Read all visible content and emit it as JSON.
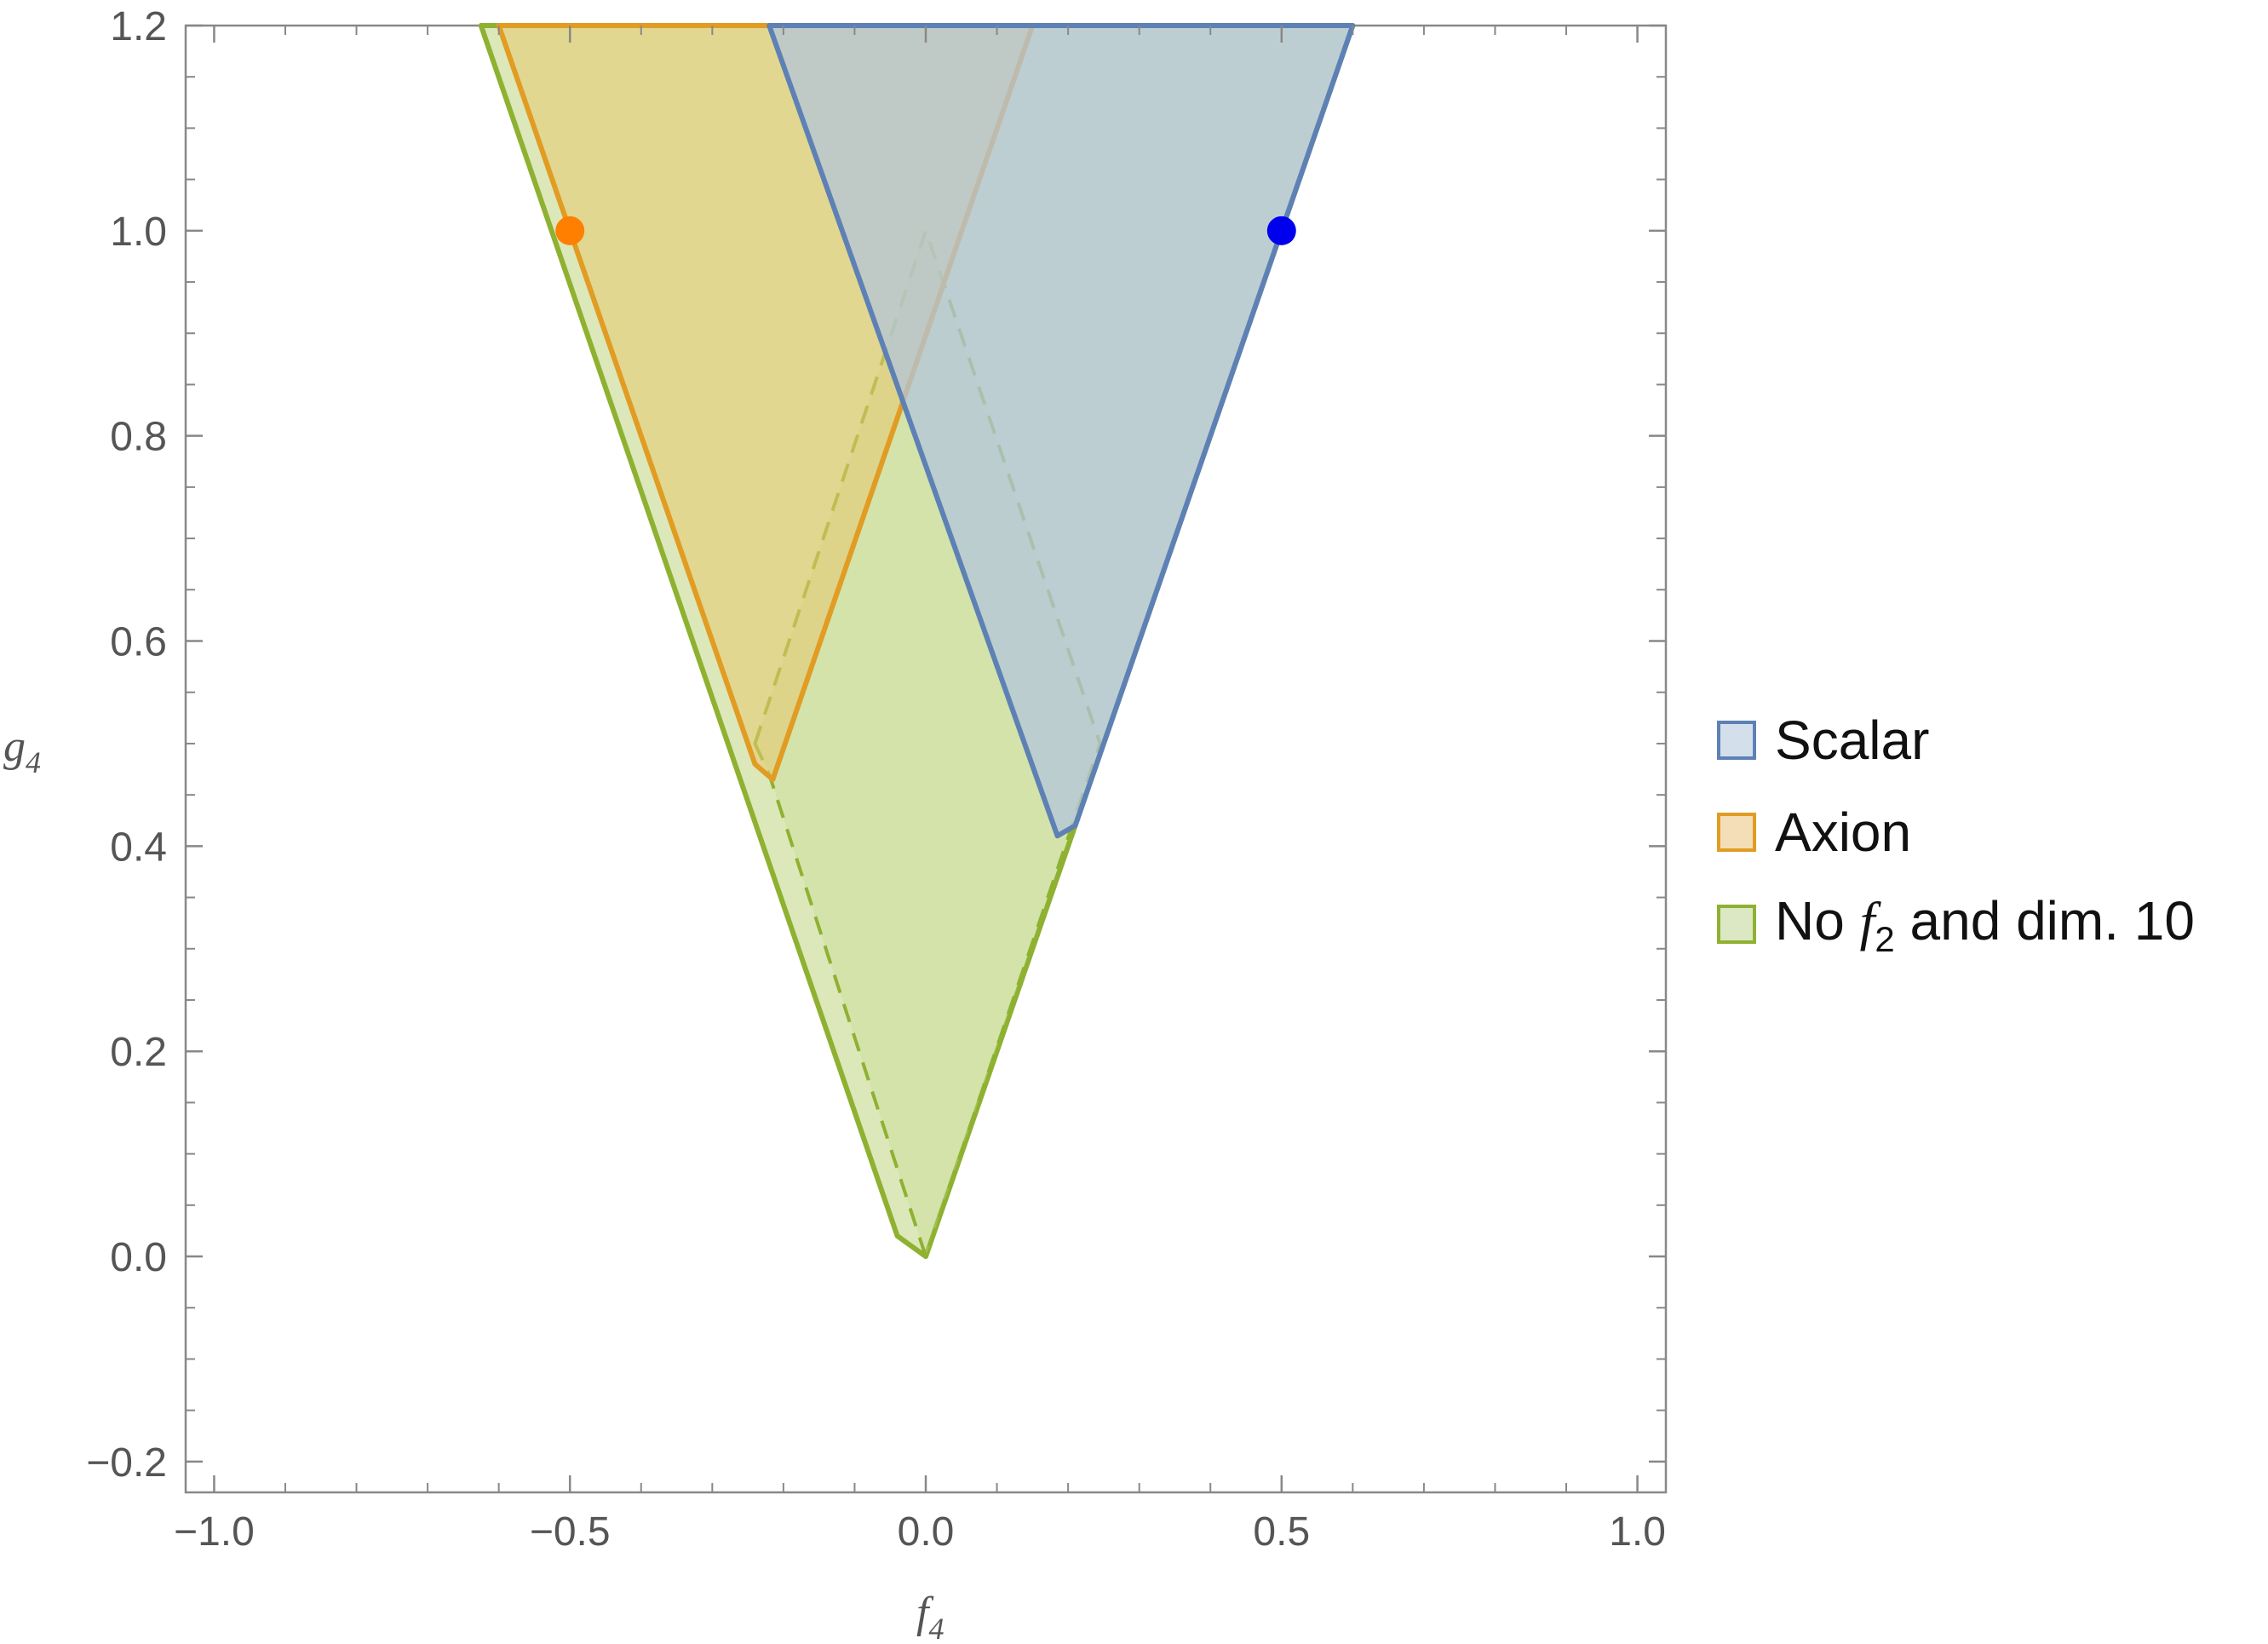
{
  "chart_data": {
    "type": "area",
    "xlabel": "f",
    "xlabel_sub": "4",
    "ylabel": "g",
    "ylabel_sub": "4",
    "xlim": [
      -1.04,
      1.04
    ],
    "ylim": [
      -0.23,
      1.2
    ],
    "x_ticks": [
      {
        "value": -1.0,
        "label": "−1.0"
      },
      {
        "value": -0.5,
        "label": "−0.5"
      },
      {
        "value": 0.0,
        "label": "0.0"
      },
      {
        "value": 0.5,
        "label": "0.5"
      },
      {
        "value": 1.0,
        "label": "1.0"
      }
    ],
    "y_ticks": [
      {
        "value": -0.2,
        "label": "−0.2"
      },
      {
        "value": 0.0,
        "label": "0.0"
      },
      {
        "value": 0.2,
        "label": "0.2"
      },
      {
        "value": 0.4,
        "label": "0.4"
      },
      {
        "value": 0.6,
        "label": "0.6"
      },
      {
        "value": 0.8,
        "label": "0.8"
      },
      {
        "value": 1.0,
        "label": "1.0"
      },
      {
        "value": 1.2,
        "label": "1.2"
      }
    ],
    "x_minor_step": 0.1,
    "y_minor_step": 0.05,
    "legend_position": "right",
    "series": [
      {
        "name": "Scalar",
        "color": "#5e81b5",
        "fill": "#b3c6d9",
        "fill_opacity": 0.75,
        "polygon": [
          [
            -0.22,
            1.2
          ],
          [
            0.6,
            1.2
          ],
          [
            0.21,
            0.42
          ],
          [
            0.185,
            0.41
          ]
        ]
      },
      {
        "name": "Axion",
        "color": "#e19c24",
        "fill": "#e8c86e",
        "fill_opacity": 0.55,
        "polygon": [
          [
            -0.6,
            1.2
          ],
          [
            0.15,
            1.2
          ],
          [
            -0.215,
            0.465
          ],
          [
            -0.24,
            0.48
          ]
        ]
      },
      {
        "name": "No f2 and dim. 10",
        "legend_label": {
          "prefix": "No ",
          "italic": "f",
          "sub": "2",
          "suffix": " and dim. 10"
        },
        "color": "#8fb131",
        "fill": "#c4d98c",
        "fill_opacity": 0.6,
        "polygon": [
          [
            -0.625,
            1.2
          ],
          [
            0.6,
            1.2
          ],
          [
            0.0,
            0.0
          ],
          [
            -0.04,
            0.02
          ]
        ],
        "dashed_inner": [
          [
            -0.24,
            0.5
          ],
          [
            0.0,
            1.0
          ],
          [
            0.245,
            0.5
          ],
          [
            0.0,
            0.0
          ],
          [
            -0.22,
            0.47
          ]
        ]
      }
    ],
    "points": [
      {
        "x": -0.5,
        "y": 1.0,
        "color": "#ff7f00"
      },
      {
        "x": 0.5,
        "y": 1.0,
        "color": "#0000ee"
      }
    ]
  }
}
